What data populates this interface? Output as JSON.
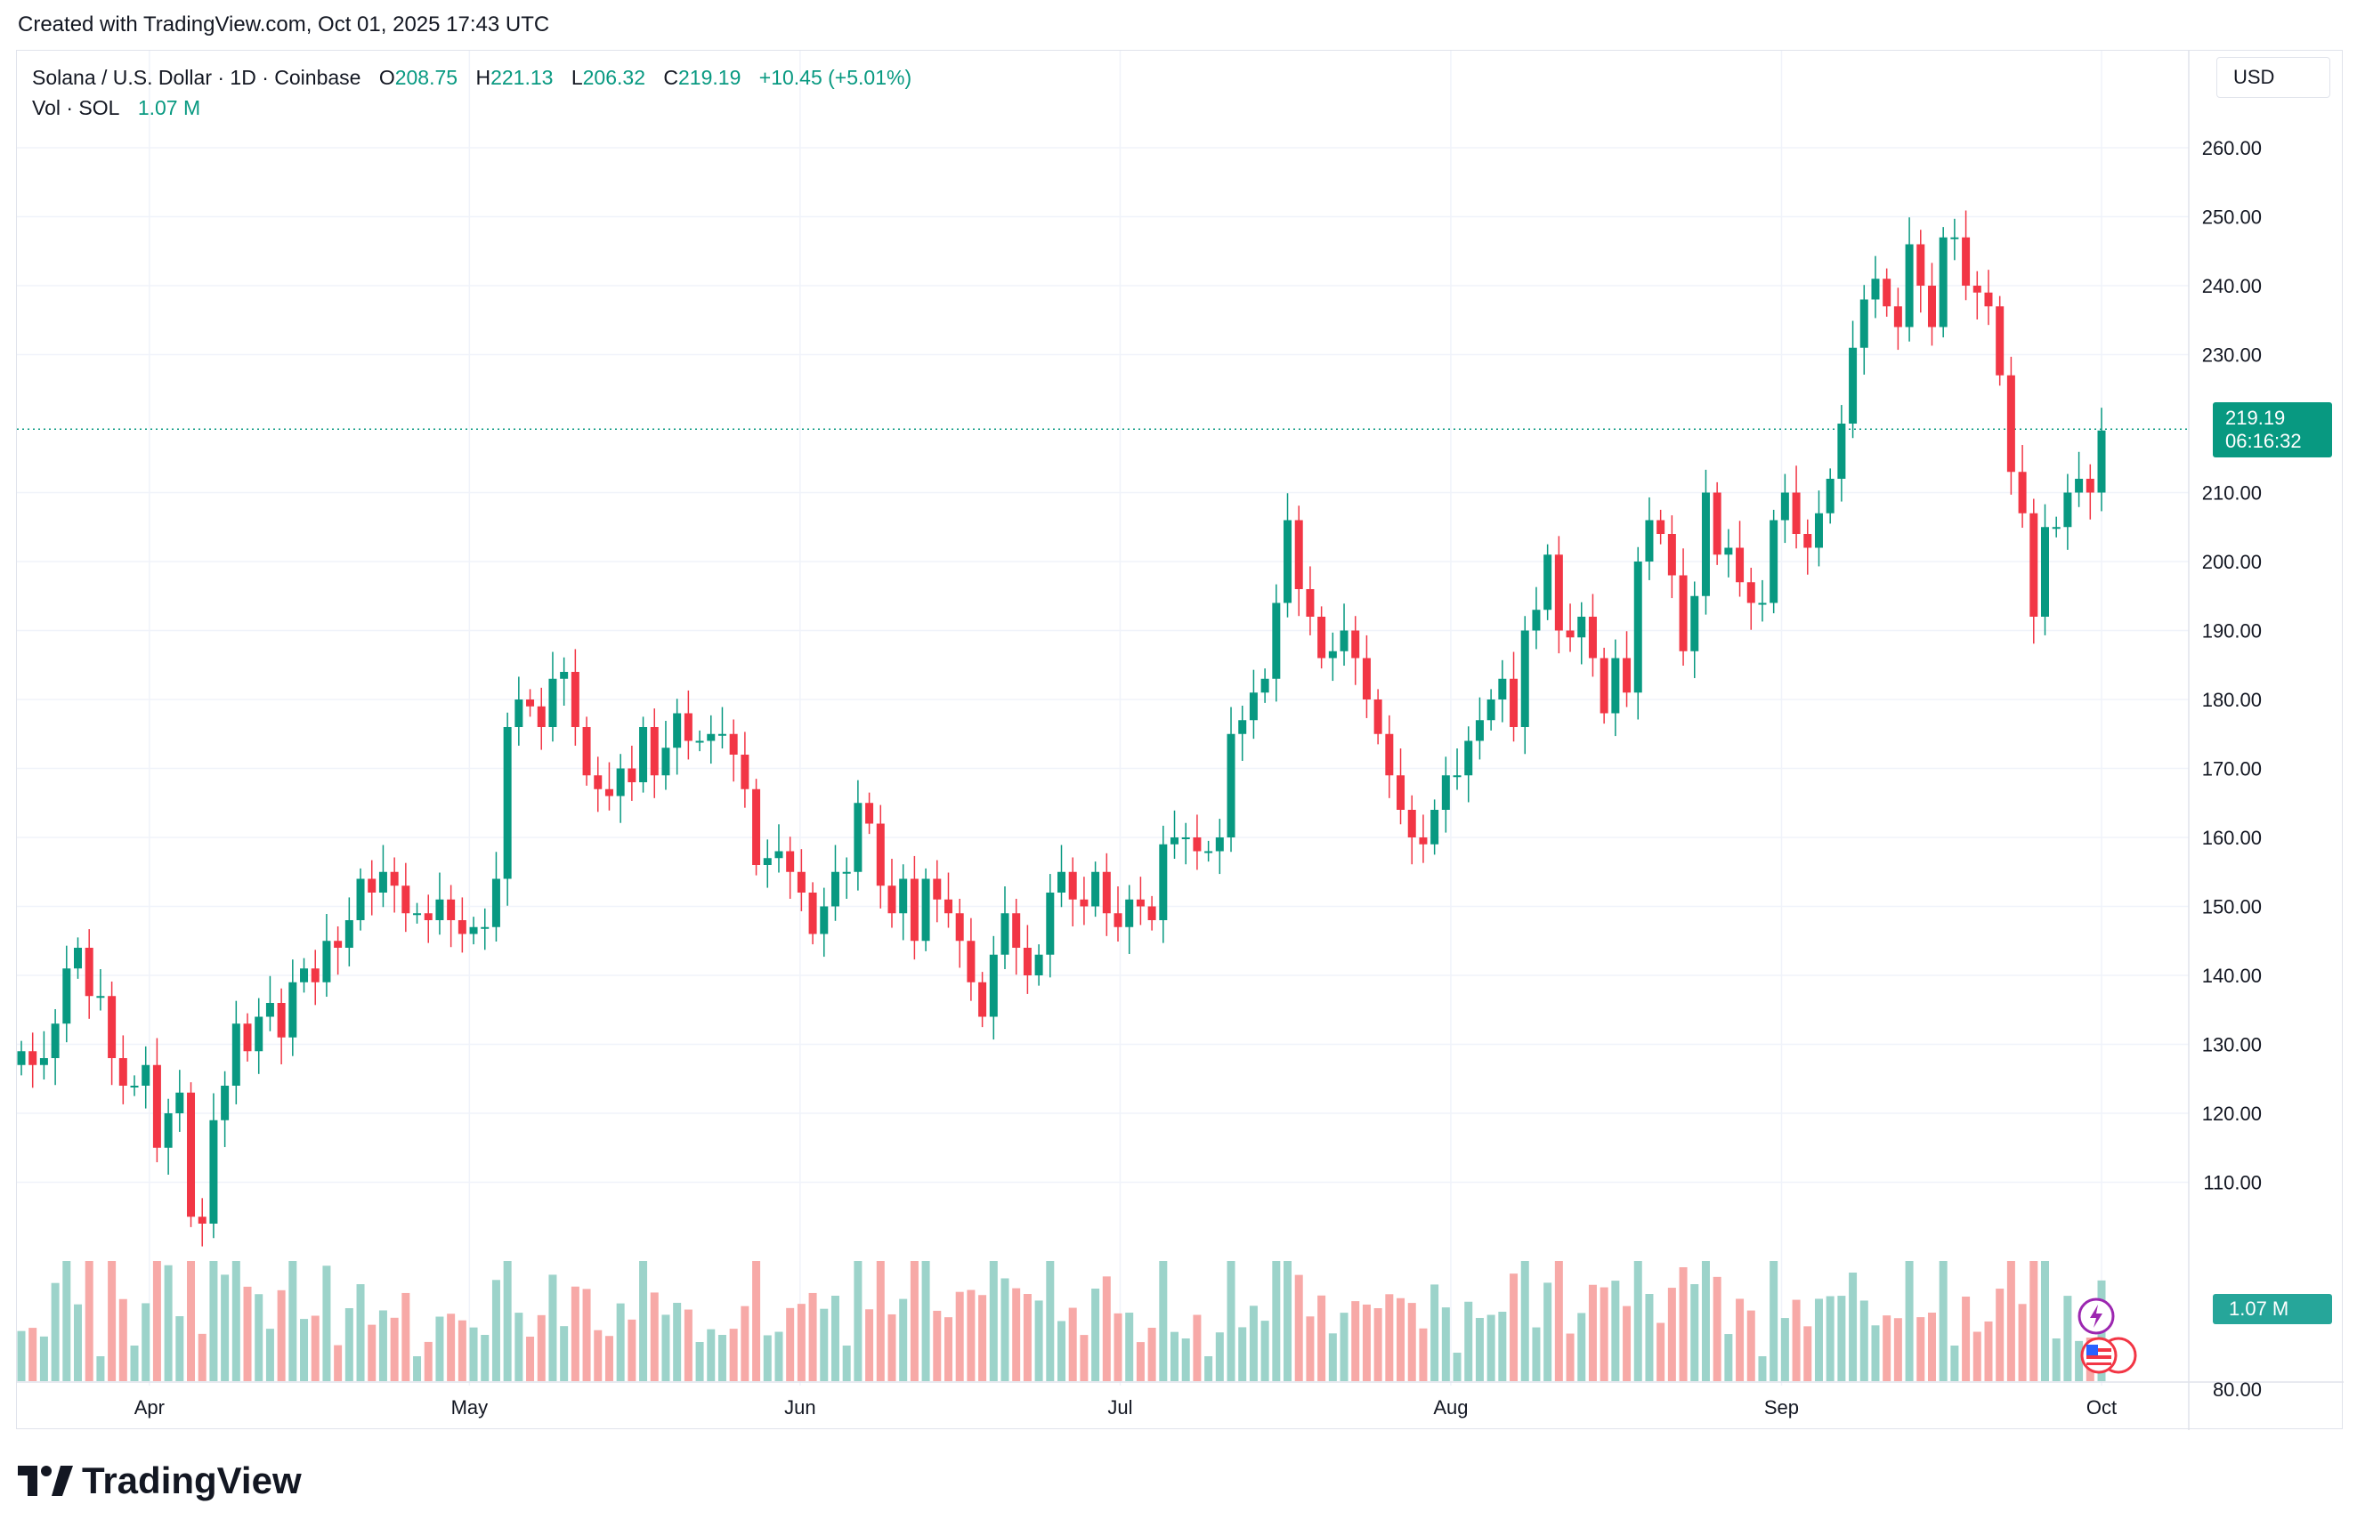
{
  "header": {
    "caption": "Created with TradingView.com, Oct 01, 2025 17:43 UTC"
  },
  "legend": {
    "symbol": "Solana / U.S. Dollar · 1D · Coinbase",
    "o_label": "O",
    "o_value": "208.75",
    "h_label": "H",
    "h_value": "221.13",
    "l_label": "L",
    "l_value": "206.32",
    "c_label": "C",
    "c_value": "219.19",
    "change": "+10.45 (+5.01%)",
    "vol_label": "Vol · SOL",
    "vol_value": "1.07 M"
  },
  "price_scale": {
    "currency": "USD"
  },
  "last_price": {
    "price": "219.19",
    "countdown": "06:16:32"
  },
  "volume_tag": "1.07 M",
  "brand": "TradingView",
  "colors": {
    "up": "#089981",
    "down": "#f23645",
    "vol_up": "#9cd3ca",
    "vol_down": "#f7a9a7",
    "grid": "#f0f3fa"
  },
  "icons": [
    "lightning-icon",
    "us-flag-icon"
  ],
  "chart_data": {
    "type": "candlestick",
    "title": "Solana / U.S. Dollar · 1D · Coinbase",
    "x_tick_labels": [
      "Apr",
      "May",
      "Jun",
      "Jul",
      "Aug",
      "Sep",
      "Oct"
    ],
    "y_tick_labels": [
      "80.00",
      "110.00",
      "120.00",
      "130.00",
      "140.00",
      "150.00",
      "160.00",
      "170.00",
      "180.00",
      "190.00",
      "200.00",
      "210.00",
      "230.00",
      "240.00",
      "250.00",
      "260.00"
    ],
    "ylim": [
      80,
      264
    ],
    "grid": true,
    "last_close_line": 219.19,
    "start_date": "2025-03-20",
    "end_date": "2025-10-01",
    "close": [
      129,
      127,
      128,
      133,
      141,
      144,
      137,
      137,
      128,
      124,
      124,
      127,
      115,
      120,
      123,
      105,
      104,
      119,
      124,
      133,
      129,
      134,
      136,
      131,
      139,
      141,
      139,
      145,
      144,
      148,
      154,
      152,
      155,
      153,
      149,
      149,
      148,
      151,
      148,
      146,
      147,
      147,
      154,
      176,
      180,
      179,
      176,
      183,
      184,
      176,
      169,
      167,
      166,
      170,
      168,
      176,
      169,
      173,
      178,
      174,
      174,
      175,
      175,
      172,
      167,
      156,
      157,
      158,
      155,
      152,
      146,
      150,
      155,
      155,
      165,
      162,
      153,
      149,
      154,
      145,
      154,
      151,
      149,
      145,
      139,
      134,
      143,
      149,
      144,
      140,
      143,
      152,
      155,
      151,
      150,
      155,
      149,
      147,
      151,
      150,
      148,
      159,
      160,
      160,
      158,
      158,
      160,
      175,
      177,
      181,
      183,
      194,
      206,
      196,
      192,
      186,
      187,
      190,
      186,
      180,
      175,
      169,
      164,
      160,
      159,
      164,
      169,
      169,
      174,
      177,
      180,
      183,
      176,
      190,
      193,
      201,
      190,
      189,
      192,
      186,
      178,
      186,
      181,
      200,
      206,
      204,
      198,
      187,
      195,
      210,
      201,
      202,
      197,
      194,
      194,
      206,
      210,
      204,
      202,
      207,
      212,
      220,
      231,
      238,
      241,
      237,
      234,
      246,
      240,
      234,
      247,
      247,
      240,
      239,
      237,
      227,
      213,
      207,
      192,
      205,
      205,
      210,
      212,
      210,
      219
    ]
  }
}
